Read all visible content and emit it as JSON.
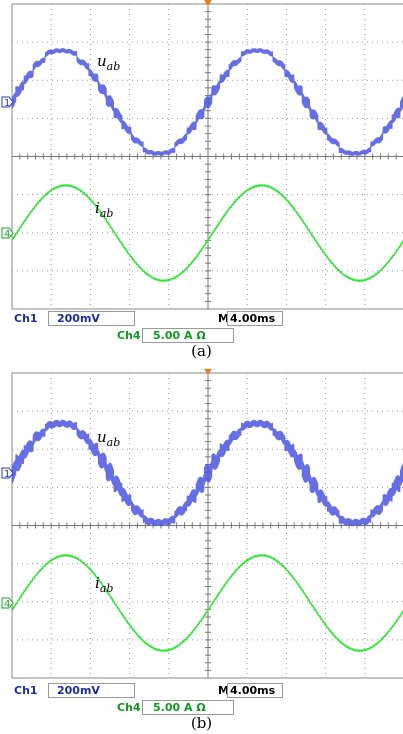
{
  "chart_data": [
    {
      "type": "line",
      "panel_caption": "(a)",
      "series": [
        {
          "name": "uab",
          "label_main": "u",
          "label_sub": "ab",
          "channel": "1",
          "color": "#4a55dd",
          "amplitude_div": 1.35,
          "cycles": 2,
          "ripple_div": 0.18
        },
        {
          "name": "iab",
          "label_main": "i",
          "label_sub": "ab",
          "channel": "4",
          "color": "#33e33a",
          "amplitude_div": 1.25,
          "cycles": 2,
          "ripple_div": 0.0
        }
      ],
      "status": {
        "ch1_label": "Ch1",
        "ch1_scale": "200mV",
        "ch4_label": "Ch4",
        "ch4_scale": "5.00 A Ω",
        "timebase_label": "M",
        "timebase": "4.00ms"
      },
      "grid": true,
      "divisions": {
        "x": 10,
        "y": 8
      }
    },
    {
      "type": "line",
      "panel_caption": "(b)",
      "series": [
        {
          "name": "uab",
          "label_main": "u",
          "label_sub": "ab",
          "channel": "1",
          "color": "#4a55dd",
          "amplitude_div": 1.3,
          "cycles": 2,
          "ripple_div": 0.28
        },
        {
          "name": "iab",
          "label_main": "i",
          "label_sub": "ab",
          "channel": "4",
          "color": "#33e33a",
          "amplitude_div": 1.25,
          "cycles": 2,
          "ripple_div": 0.0
        }
      ],
      "status": {
        "ch1_label": "Ch1",
        "ch1_scale": "200mV",
        "ch4_label": "Ch4",
        "ch4_scale": "5.00 A Ω",
        "timebase_label": "M",
        "timebase": "4.00ms"
      },
      "grid": true,
      "divisions": {
        "x": 10,
        "y": 8
      }
    }
  ]
}
